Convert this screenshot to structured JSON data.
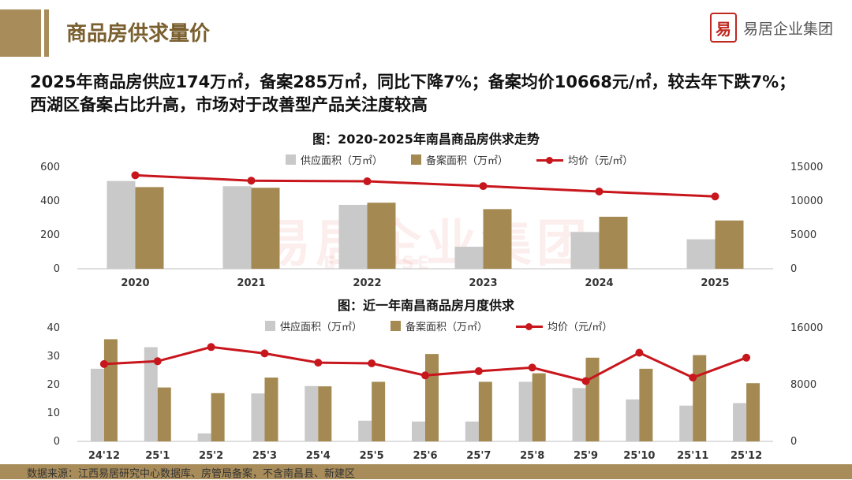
{
  "header": {
    "section_title": "商品房供求量价",
    "logo_seal": "易",
    "logo_text": "易居企业集团"
  },
  "headline": {
    "line1": "2025年商品房供应174万㎡，备案285万㎡，同比下降7%；备案均价10668元/㎡，较去年下跌7%；",
    "line2": "西湖区备案占比升高，市场对于改善型产品关注度较高"
  },
  "watermark": {
    "text": "易居企业集团",
    "sub": "E-HOUSE"
  },
  "colors": {
    "supply": "#c9c9c9",
    "filing": "#a48a52",
    "price": "#c8161d",
    "accent": "#a88c5a"
  },
  "chart_data": [
    {
      "type": "bar",
      "title": "图：2020-2025年南昌商品房供求走势",
      "categories": [
        "2020",
        "2021",
        "2022",
        "2023",
        "2024",
        "2025"
      ],
      "series": [
        {
          "name": "供应面积（万㎡）",
          "type": "bar",
          "axis": "left",
          "values": [
            518,
            487,
            377,
            130,
            217,
            174
          ]
        },
        {
          "name": "备案面积（万㎡）",
          "type": "bar",
          "axis": "left",
          "values": [
            482,
            478,
            390,
            352,
            307,
            285
          ]
        },
        {
          "name": "均价（元/㎡）",
          "type": "line",
          "axis": "right",
          "values": [
            13800,
            13000,
            12900,
            12200,
            11400,
            10668
          ]
        }
      ],
      "ylim": [
        0,
        600
      ],
      "yticks": [
        0,
        200,
        400,
        600
      ],
      "y2lim": [
        0,
        15000
      ],
      "y2ticks": [
        0,
        5000,
        10000,
        15000
      ],
      "legend": "top-center",
      "grid": false
    },
    {
      "type": "bar",
      "title": "图：近一年南昌商品房月度供求",
      "categories": [
        "24'12",
        "25'1",
        "25'2",
        "25'3",
        "25'4",
        "25'5",
        "25'6",
        "25'7",
        "25'8",
        "25'9",
        "25'10",
        "25'11",
        "25'12"
      ],
      "series": [
        {
          "name": "供应面积（万㎡）",
          "type": "bar",
          "axis": "left",
          "values": [
            25.6,
            33.2,
            2.8,
            16.9,
            19.5,
            7.3,
            7.0,
            7.0,
            21.0,
            18.8,
            14.8,
            12.6,
            13.5
          ]
        },
        {
          "name": "备案面积（万㎡）",
          "type": "bar",
          "axis": "left",
          "values": [
            36.0,
            19.0,
            17.0,
            22.5,
            19.4,
            21.0,
            30.8,
            21.0,
            24.0,
            29.5,
            25.6,
            30.4,
            20.5
          ]
        },
        {
          "name": "均价（元/㎡）",
          "type": "line",
          "axis": "right",
          "values": [
            10900,
            11300,
            13300,
            12400,
            11100,
            11000,
            9300,
            9900,
            10400,
            8500,
            12500,
            9000,
            11800
          ]
        }
      ],
      "ylim": [
        0,
        40
      ],
      "yticks": [
        0,
        10,
        20,
        30,
        40
      ],
      "y2lim": [
        0,
        16000
      ],
      "y2ticks": [
        0,
        8000,
        16000
      ],
      "legend": "top-center",
      "grid": false
    }
  ],
  "source": "数据来源：江西易居研究中心数据库、房管局备案，不含南昌县、新建区"
}
